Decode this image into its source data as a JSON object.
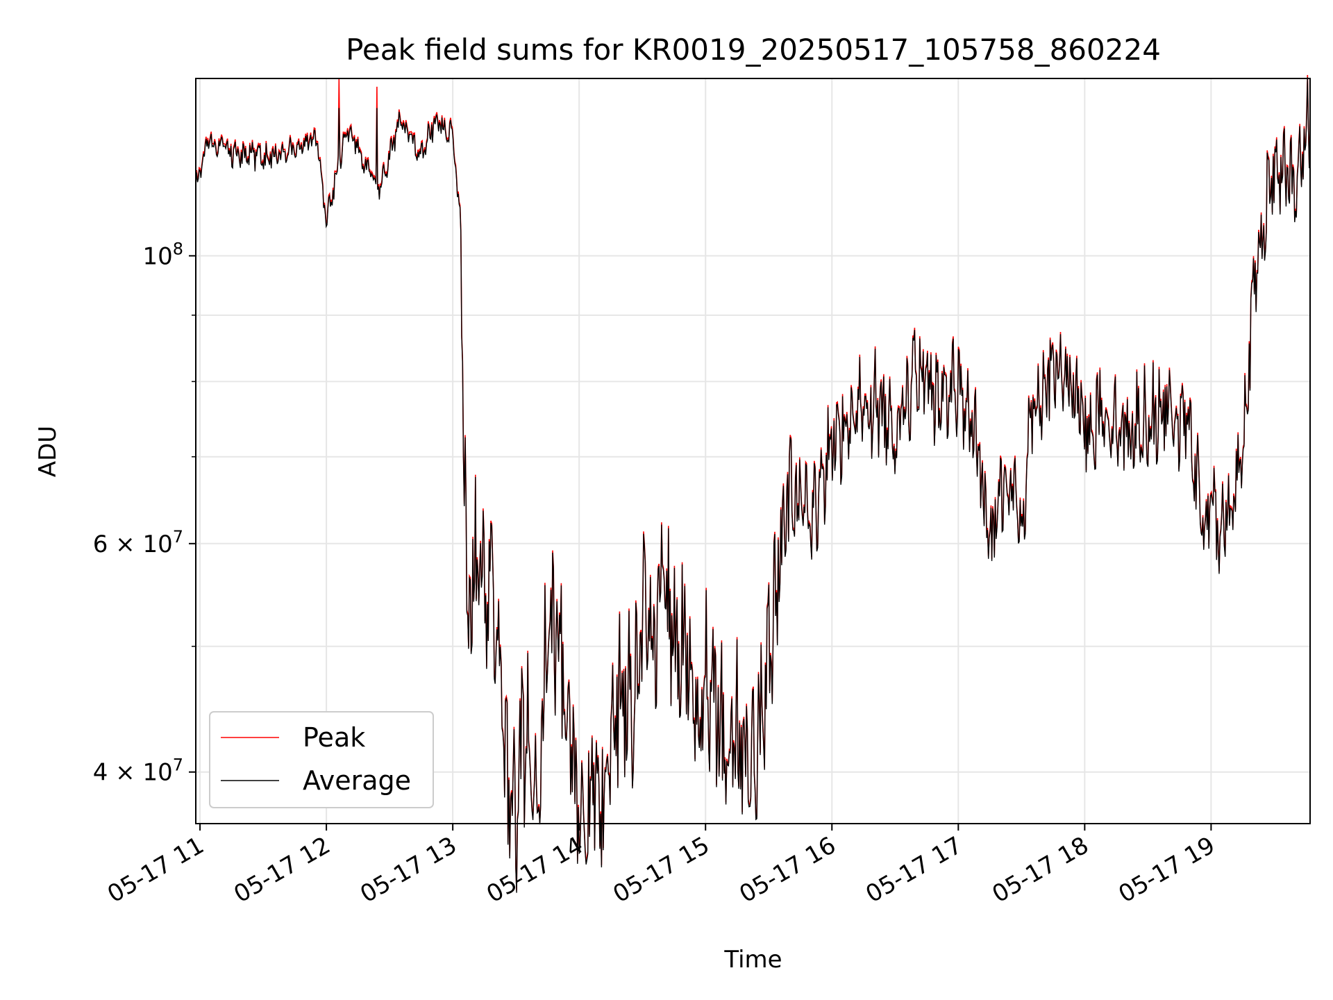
{
  "chart_data": {
    "type": "line",
    "title": "Peak field sums for KR0019_20250517_105758_860224",
    "xlabel": "Time",
    "ylabel": "ADU",
    "yscale": "log",
    "xlim": [
      "2025-05-17 10:58",
      "2025-05-17 19:47"
    ],
    "ylim": [
      36500000,
      137000000
    ],
    "x_ticks": [
      "05-17 11",
      "05-17 12",
      "05-17 13",
      "05-17 14",
      "05-17 15",
      "05-17 16",
      "05-17 17",
      "05-17 18",
      "05-17 19"
    ],
    "y_ticks_major": [
      {
        "value": 40000000,
        "mant": "4",
        "exp": "7"
      },
      {
        "value": 60000000,
        "mant": "6",
        "exp": "7"
      },
      {
        "value": 100000000,
        "mant": "",
        "exp": "8"
      }
    ],
    "y_ticks_minor": [
      50000000,
      70000000,
      80000000,
      90000000
    ],
    "grid": true,
    "legend_position": "lower-left",
    "series_colors": {
      "Peak": "#ff0000",
      "Average": "#000000"
    },
    "series_keypoints": {
      "x": [
        "10:58",
        "11:05",
        "11:15",
        "11:30",
        "11:45",
        "11:55",
        "12:00",
        "12:10",
        "12:20",
        "12:25",
        "12:35",
        "12:45",
        "12:52",
        "13:00",
        "13:04",
        "13:07",
        "13:10",
        "13:15",
        "13:20",
        "13:25",
        "13:30",
        "13:35",
        "13:40",
        "13:45",
        "13:50",
        "13:55",
        "14:00",
        "14:10",
        "14:15",
        "14:20",
        "14:25",
        "14:30",
        "14:35",
        "14:40",
        "14:45",
        "14:50",
        "14:55",
        "15:00",
        "15:05",
        "15:10",
        "15:15",
        "15:20",
        "15:25",
        "15:30",
        "15:35",
        "15:40",
        "15:45",
        "15:50",
        "16:00",
        "16:10",
        "16:20",
        "16:30",
        "16:40",
        "16:50",
        "17:00",
        "17:10",
        "17:15",
        "17:20",
        "17:25",
        "17:30",
        "17:35",
        "17:40",
        "17:45",
        "17:50",
        "18:00",
        "18:10",
        "18:20",
        "18:30",
        "18:40",
        "18:50",
        "18:57",
        "19:00",
        "19:03",
        "19:05",
        "19:10",
        "19:15",
        "19:20",
        "19:25",
        "19:30",
        "19:35",
        "19:40",
        "19:45",
        "19:47"
      ],
      "values": [
        114000000,
        123000000,
        120000000,
        119000000,
        121000000,
        124000000,
        106000000,
        126000000,
        116000000,
        112000000,
        127000000,
        120000000,
        127000000,
        124000000,
        104000000,
        51000000,
        58000000,
        56000000,
        55000000,
        40000000,
        37500000,
        44000000,
        38000000,
        51000000,
        52000000,
        43000000,
        38000000,
        38500000,
        42000000,
        48000000,
        44000000,
        53000000,
        50000000,
        58000000,
        49000000,
        50000000,
        43000000,
        48000000,
        44000000,
        42000000,
        43000000,
        41000000,
        42000000,
        50000000,
        58000000,
        66000000,
        64000000,
        62000000,
        72000000,
        75000000,
        77000000,
        74000000,
        81000000,
        77000000,
        80000000,
        70000000,
        59000000,
        68000000,
        66000000,
        62000000,
        77000000,
        79000000,
        82000000,
        81000000,
        74000000,
        76000000,
        73000000,
        75000000,
        76000000,
        73000000,
        61000000,
        64000000,
        62000000,
        62000000,
        64000000,
        72000000,
        92000000,
        108000000,
        115000000,
        120000000,
        110000000,
        125000000,
        126000000
      ],
      "spikes": [
        {
          "x": "12:06",
          "value": 137000000
        },
        {
          "x": "12:24",
          "value": 135000000
        }
      ]
    },
    "series": [
      {
        "name": "Peak",
        "color": "#ff0000"
      },
      {
        "name": "Average",
        "color": "#000000"
      }
    ]
  }
}
